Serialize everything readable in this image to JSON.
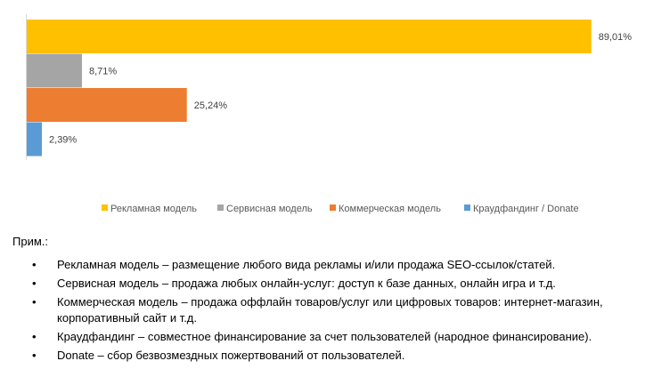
{
  "chart_data": {
    "type": "bar",
    "orientation": "horizontal",
    "categories": [
      "Рекламная модель",
      "Сервисная модель",
      "Коммерческая модель",
      "Краудфандинг / Donate"
    ],
    "values": [
      89.01,
      8.71,
      25.24,
      2.39
    ],
    "labels": [
      "89,01%",
      "8,71%",
      "25,24%",
      "2,39%"
    ],
    "colors": [
      "#FFC000",
      "#A5A5A5",
      "#ED7D31",
      "#5B9BD5"
    ],
    "xlim": [
      0,
      100
    ],
    "legend_position": "bottom",
    "grid": false,
    "title": "",
    "xlabel": "",
    "ylabel": ""
  },
  "notes": {
    "title": "Прим.:",
    "items": [
      "Рекламная модель – размещение любого вида рекламы и/или продажа SEO-ссылок/статей.",
      "Сервисная модель – продажа любых онлайн-услуг: доступ к базе данных, онлайн игра и т.д.",
      "Коммерческая модель – продажа оффлайн товаров/услуг или цифровых товаров: интернет-магазин, корпоративный сайт и т.д.",
      "Краудфандинг – совместное финансирование за счет пользователей (народное финансирование).",
      "Donate – сбор безвозмездных пожертвований от пользователей."
    ],
    "bullet": "•"
  }
}
